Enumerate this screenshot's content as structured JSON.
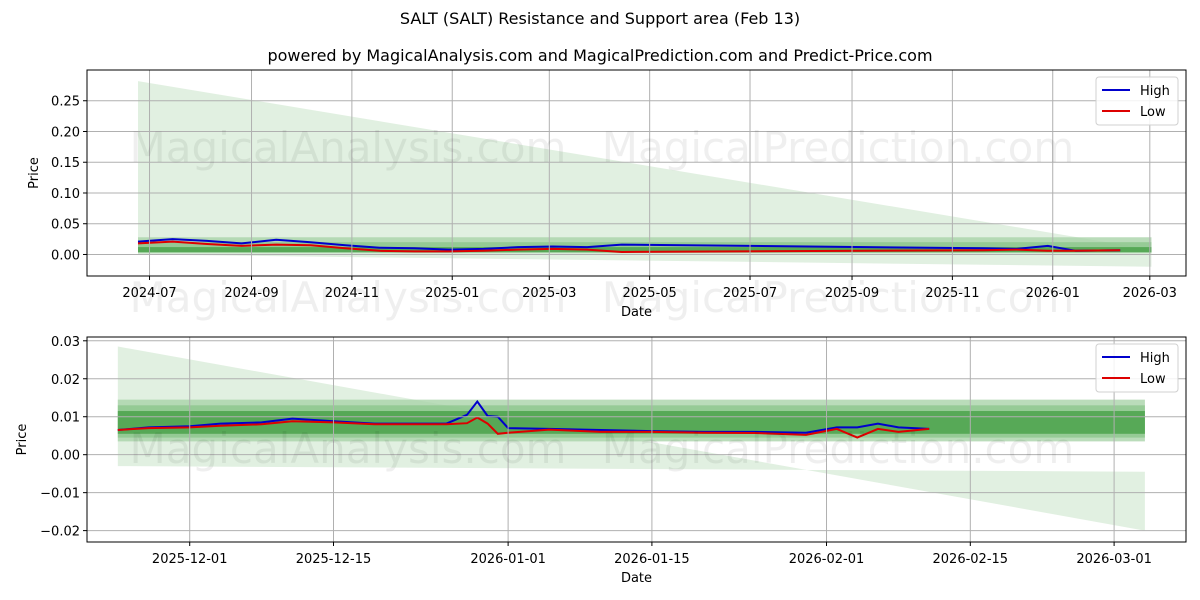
{
  "title": "SALT (SALT) Resistance and Support area (Feb 13)",
  "subtitle": "powered by MagicalAnalysis.com and MagicalPrediction.com and Predict-Price.com",
  "watermarks": [
    "MagicalAnalysis.com",
    "MagicalPrediction.com"
  ],
  "colors": {
    "high": "#0000cc",
    "low": "#dd0000",
    "band_dark": "#3c9a3c",
    "band_light": "#a9d3a9",
    "cone": "#d7ebd7"
  },
  "chart_data": [
    {
      "type": "line",
      "title": "Full range",
      "xlabel": "Date",
      "ylabel": "Price",
      "ylim": [
        -0.035,
        0.3
      ],
      "yticks": [
        "0.00",
        "0.05",
        "0.10",
        "0.15",
        "0.20",
        "0.25"
      ],
      "xticks": [
        "2024-07",
        "2024-09",
        "2024-11",
        "2025-01",
        "2025-03",
        "2025-05",
        "2025-07",
        "2025-09",
        "2025-11",
        "2026-01",
        "2026-03"
      ],
      "grid": true,
      "legend": {
        "position": "upper right",
        "entries": [
          "High",
          "Low"
        ]
      },
      "x": [
        "2024-06-24",
        "2024-07-15",
        "2024-08-05",
        "2024-08-26",
        "2024-09-16",
        "2024-10-07",
        "2024-10-28",
        "2024-11-18",
        "2024-12-09",
        "2024-12-30",
        "2025-01-20",
        "2025-02-10",
        "2025-03-03",
        "2025-03-24",
        "2025-04-14",
        "2025-11-20",
        "2025-12-10",
        "2025-12-29",
        "2026-01-15",
        "2026-02-11"
      ],
      "series": [
        {
          "name": "High",
          "values": [
            0.021,
            0.025,
            0.022,
            0.018,
            0.024,
            0.02,
            0.015,
            0.011,
            0.01,
            0.008,
            0.009,
            0.012,
            0.013,
            0.012,
            0.016,
            0.01,
            0.009,
            0.014,
            0.006,
            0.007
          ]
        },
        {
          "name": "Low",
          "values": [
            0.018,
            0.021,
            0.017,
            0.014,
            0.016,
            0.015,
            0.01,
            0.006,
            0.005,
            0.005,
            0.006,
            0.008,
            0.009,
            0.008,
            0.004,
            0.007,
            0.008,
            0.006,
            0.006,
            0.007
          ]
        }
      ],
      "cone": {
        "start": "2024-06-24",
        "end": "2026-03-02",
        "upper_start": 0.282,
        "upper_end": 0.008,
        "lower_start": 0.0,
        "lower_end": -0.02
      },
      "band": {
        "start": "2024-06-24",
        "end": "2026-03-02",
        "outer": [
          0.002,
          0.028
        ],
        "inner": [
          0.004,
          0.012
        ]
      }
    },
    {
      "type": "line",
      "title": "Zoomed recent",
      "xlabel": "Date",
      "ylabel": "Price",
      "ylim": [
        -0.023,
        0.031
      ],
      "yticks": [
        "−0.02",
        "−0.01",
        "0.00",
        "0.01",
        "0.02",
        "0.03"
      ],
      "xticks": [
        "2025-12-01",
        "2025-12-15",
        "2026-01-01",
        "2026-01-15",
        "2026-02-01",
        "2026-02-15",
        "2026-03-01"
      ],
      "grid": true,
      "legend": {
        "position": "upper right",
        "entries": [
          "High",
          "Low"
        ]
      },
      "x": [
        "2025-11-24",
        "2025-11-27",
        "2025-12-01",
        "2025-12-04",
        "2025-12-08",
        "2025-12-11",
        "2025-12-15",
        "2025-12-19",
        "2025-12-23",
        "2025-12-26",
        "2025-12-28",
        "2025-12-29",
        "2025-12-30",
        "2025-12-31",
        "2026-01-01",
        "2026-01-05",
        "2026-01-10",
        "2026-01-15",
        "2026-01-20",
        "2026-01-25",
        "2026-01-30",
        "2026-02-02",
        "2026-02-04",
        "2026-02-06",
        "2026-02-08",
        "2026-02-11"
      ],
      "series": [
        {
          "name": "High",
          "values": [
            0.0065,
            0.0072,
            0.0075,
            0.0082,
            0.0085,
            0.0095,
            0.0088,
            0.0082,
            0.0082,
            0.0082,
            0.0105,
            0.014,
            0.0102,
            0.01,
            0.007,
            0.0068,
            0.0065,
            0.0062,
            0.006,
            0.006,
            0.0058,
            0.0072,
            0.0072,
            0.0082,
            0.0072,
            0.0068
          ]
        },
        {
          "name": "Low",
          "values": [
            0.0065,
            0.007,
            0.0072,
            0.0076,
            0.008,
            0.0088,
            0.0085,
            0.008,
            0.008,
            0.008,
            0.0083,
            0.0098,
            0.0082,
            0.0055,
            0.0058,
            0.0066,
            0.006,
            0.006,
            0.0058,
            0.0057,
            0.0052,
            0.0068,
            0.0045,
            0.0068,
            0.006,
            0.0068
          ]
        }
      ],
      "cone": {
        "start": "2025-11-24",
        "end": "2026-03-04",
        "upper_start": 0.0285,
        "upper_end": -0.02,
        "lower_start": -0.003,
        "lower_end": -0.0045
      },
      "band": {
        "start": "2025-11-24",
        "end": "2026-03-04",
        "outer": [
          0.0035,
          0.0145
        ],
        "inner": [
          0.0055,
          0.0115
        ]
      }
    }
  ]
}
